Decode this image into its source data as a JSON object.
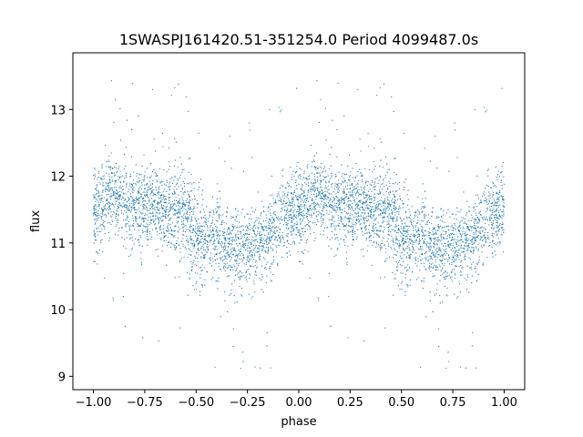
{
  "chart_data": {
    "type": "scatter",
    "title": "1SWASPJ161420.51-351254.0 Period 4099487.0s",
    "xlabel": "phase",
    "ylabel": "flux",
    "xlim": [
      -1.1,
      1.1
    ],
    "ylim": [
      8.8,
      13.85
    ],
    "xticks": [
      -1.0,
      -0.75,
      -0.5,
      -0.25,
      0.0,
      0.25,
      0.5,
      0.75,
      1.0
    ],
    "xtick_labels": [
      "−1.00",
      "−0.75",
      "−0.50",
      "−0.25",
      "0.00",
      "0.25",
      "0.50",
      "0.75",
      "1.00"
    ],
    "yticks": [
      9,
      10,
      11,
      12,
      13
    ],
    "ytick_labels": [
      "9",
      "10",
      "11",
      "12",
      "13"
    ],
    "grid": false,
    "legend": "none",
    "marker_color": "#1f77b4",
    "phase_curve": {
      "phase": [
        0.0,
        0.04,
        0.08,
        0.12,
        0.16,
        0.2,
        0.25,
        0.3,
        0.35,
        0.4,
        0.45,
        0.5,
        0.55,
        0.6,
        0.65,
        0.7,
        0.75,
        0.8,
        0.85,
        0.9,
        0.95,
        1.0
      ],
      "flux": [
        11.5,
        11.6,
        11.7,
        11.65,
        11.6,
        11.55,
        11.5,
        11.5,
        11.45,
        11.5,
        11.45,
        11.1,
        11.0,
        11.05,
        10.95,
        10.9,
        10.95,
        11.0,
        11.05,
        11.3,
        11.4,
        11.5
      ],
      "scatter": [
        0.3,
        0.35,
        0.3,
        0.3,
        0.3,
        0.3,
        0.3,
        0.3,
        0.3,
        0.3,
        0.35,
        0.35,
        0.3,
        0.3,
        0.3,
        0.3,
        0.3,
        0.3,
        0.25,
        0.3,
        0.3,
        0.3
      ]
    }
  }
}
